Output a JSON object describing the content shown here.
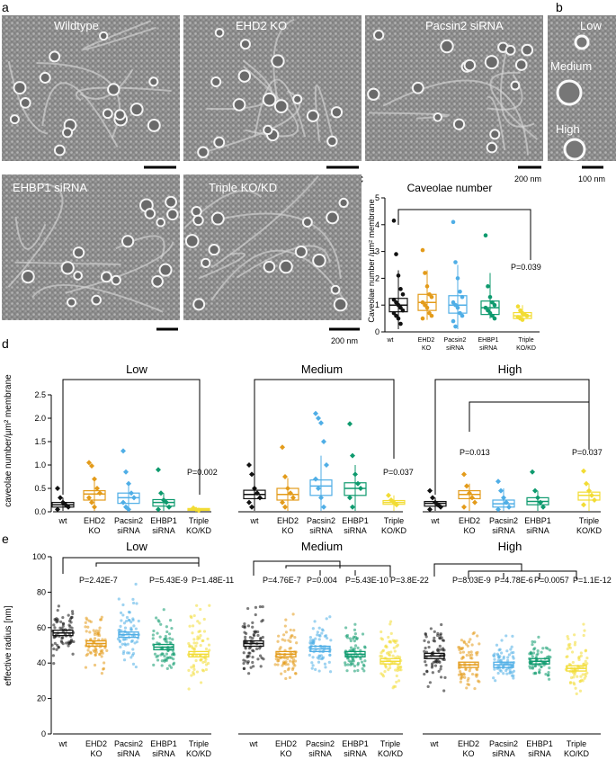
{
  "panel_letters": {
    "a": "a",
    "b": "b",
    "c": "c",
    "d": "d",
    "e": "e"
  },
  "micrographs": {
    "wildtype": "Wildtype",
    "ehd2_ko": "EHD2 KO",
    "pacsin2_sirna": "Pacsin2 siRNA",
    "ehbp1_sirna": "EHBP1 siRNA",
    "triple": "Triple KO/KD",
    "scale_200nm": "200 nm",
    "scale_200nm_b": "200 nm",
    "scale_100nm": "100 nm"
  },
  "panel_b": {
    "low": "Low",
    "medium": "Medium",
    "high": "High"
  },
  "colors": {
    "wt": "#111111",
    "ehd2": "#E39B1A",
    "pacsin2": "#4FAEE6",
    "ehbp1": "#0E9A6E",
    "triple": "#F2DC34"
  },
  "group_labels": [
    [
      "wt"
    ],
    [
      "EHD2",
      "KO"
    ],
    [
      "Pacsin2",
      "siRNA"
    ],
    [
      "EHBP1",
      "siRNA"
    ],
    [
      "Triple",
      "KO/KD"
    ]
  ],
  "panel_c": {
    "title": "Caveolae number",
    "ylabel": "Caveolae number /µm² membrane",
    "ticks": [
      "0",
      "1",
      "2",
      "3",
      "4",
      "5"
    ],
    "pvalue": "P=0.039"
  },
  "panel_d": {
    "ylabel": "caveolae number/µm² membrane",
    "ticks": [
      "0.0",
      "0.5",
      "1.0",
      "1.5",
      "2.0",
      "2.5"
    ],
    "low_title": "Low",
    "medium_title": "Medium",
    "high_title": "High",
    "low_p": "P=0.002",
    "medium_p": "P=0.037",
    "high_p_ehd2": "P=0.013",
    "high_p_triple": "P=0.037"
  },
  "panel_e": {
    "ylabel": "effective radius [nm]",
    "ticks": [
      "0",
      "20",
      "40",
      "60",
      "80",
      "100"
    ],
    "low_title": "Low",
    "medium_title": "Medium",
    "high_title": "High",
    "low_p": [
      "P=2.42E-7",
      "P=5.43E-9",
      "P=1.48E-11"
    ],
    "medium_p": [
      "P=4.76E-7",
      "P=0.004",
      "P=5.43E-10",
      "P=3.8E-22"
    ],
    "high_p": [
      "P=8.03E-9",
      "P=4.78E-6",
      "P=0.0057",
      "P=1.1E-12"
    ]
  },
  "chart_data": [
    {
      "panel": "c",
      "type": "scatter",
      "title": "Caveolae number",
      "ylabel": "Caveolae number /µm² membrane",
      "ylim": [
        0,
        5
      ],
      "categories": [
        "wt",
        "EHD2 KO",
        "Pacsin2 siRNA",
        "EHBP1 siRNA",
        "Triple KO/KD"
      ],
      "medians": [
        1.0,
        1.1,
        1.0,
        0.9,
        0.6
      ],
      "box_low": [
        0.75,
        0.8,
        0.7,
        0.65,
        0.5
      ],
      "box_high": [
        1.25,
        1.4,
        1.35,
        1.15,
        0.72
      ],
      "whisker_low": [
        0.1,
        0.45,
        0.1,
        0.5,
        0.4
      ],
      "whisker_high": [
        2.3,
        2.3,
        2.5,
        2.2,
        1.0
      ],
      "points": [
        [
          4.15,
          2.9,
          2.1,
          1.6,
          1.4,
          1.2,
          1.1,
          1.0,
          0.9,
          0.8,
          0.7,
          0.6,
          0.5,
          0.3
        ],
        [
          3.05,
          2.2,
          1.7,
          1.4,
          1.3,
          1.1,
          1.0,
          0.9,
          0.7,
          0.6,
          0.5
        ],
        [
          4.1,
          2.6,
          2.0,
          1.5,
          1.3,
          1.1,
          1.0,
          0.9,
          0.7,
          0.6,
          0.4,
          0.2
        ],
        [
          3.6,
          1.7,
          1.3,
          1.1,
          1.0,
          0.9,
          0.8,
          0.7,
          0.6,
          0.5
        ],
        [
          0.95,
          0.8,
          0.7,
          0.65,
          0.6,
          0.55,
          0.5,
          0.45
        ]
      ]
    },
    {
      "panel": "d",
      "type": "scatter",
      "ylabel": "caveolae number/µm² membrane",
      "ylim": [
        0,
        2.5
      ],
      "categories": [
        "wt",
        "EHD2 KO",
        "Pacsin2 siRNA",
        "EHBP1 siRNA",
        "Triple KO/KD"
      ],
      "groups": [
        {
          "name": "Low",
          "medians": [
            0.15,
            0.38,
            0.3,
            0.2,
            0.05
          ],
          "box_low": [
            0.1,
            0.25,
            0.18,
            0.12,
            0.03
          ],
          "box_high": [
            0.2,
            0.45,
            0.4,
            0.26,
            0.07
          ],
          "whisker_high": [
            0.3,
            0.72,
            0.65,
            0.4,
            0.09
          ],
          "points": [
            [
              0.5,
              0.3,
              0.2,
              0.15,
              0.1,
              0.05
            ],
            [
              1.05,
              0.98,
              0.7,
              0.5,
              0.4,
              0.3,
              0.2,
              0.1
            ],
            [
              1.3,
              0.85,
              0.6,
              0.4,
              0.3,
              0.2,
              0.1,
              0.05
            ],
            [
              0.9,
              0.4,
              0.25,
              0.2,
              0.1,
              0.05
            ],
            [
              0.08,
              0.05,
              0.03
            ]
          ]
        },
        {
          "name": "Medium",
          "medians": [
            0.37,
            0.37,
            0.55,
            0.5,
            0.2
          ],
          "box_low": [
            0.28,
            0.25,
            0.35,
            0.35,
            0.16
          ],
          "box_high": [
            0.46,
            0.5,
            0.68,
            0.62,
            0.24
          ],
          "whisker_high": [
            0.75,
            0.72,
            1.2,
            1.0,
            0.35
          ],
          "points": [
            [
              1.0,
              0.8,
              0.5,
              0.4,
              0.3,
              0.2,
              0.1
            ],
            [
              1.38,
              0.75,
              0.5,
              0.4,
              0.3,
              0.2,
              0.1
            ],
            [
              2.1,
              2.0,
              1.9,
              1.5,
              1.0,
              0.7,
              0.5,
              0.3,
              0.1
            ],
            [
              1.88,
              1.2,
              0.8,
              0.6,
              0.5,
              0.3,
              0.1
            ],
            [
              0.35,
              0.25,
              0.2,
              0.15
            ]
          ]
        },
        {
          "name": "High",
          "medians": [
            0.18,
            0.37,
            0.17,
            0.22,
            0.35
          ],
          "box_low": [
            0.12,
            0.28,
            0.1,
            0.15,
            0.25
          ],
          "box_high": [
            0.22,
            0.45,
            0.25,
            0.3,
            0.42
          ],
          "whisker_high": [
            0.3,
            0.6,
            0.5,
            0.45,
            0.6
          ],
          "points": [
            [
              0.45,
              0.3,
              0.2,
              0.15,
              0.1,
              0.05
            ],
            [
              0.8,
              0.55,
              0.4,
              0.3,
              0.2,
              0.1
            ],
            [
              0.65,
              0.45,
              0.3,
              0.2,
              0.1,
              0.05
            ],
            [
              0.85,
              0.45,
              0.3,
              0.2,
              0.1
            ],
            [
              0.87,
              0.6,
              0.45,
              0.35,
              0.25,
              0.15
            ]
          ]
        }
      ]
    },
    {
      "panel": "e",
      "type": "scatter",
      "ylabel": "effective radius [nm]",
      "ylim": [
        0,
        100
      ],
      "categories": [
        "wt",
        "EHD2 KO",
        "Pacsin2 siRNA",
        "EHBP1 siRNA",
        "Triple KO/KD"
      ],
      "groups": [
        {
          "name": "Low",
          "means": [
            57,
            51,
            56,
            49,
            45
          ],
          "ranges": [
            [
              38,
              84
            ],
            [
              30,
              76
            ],
            [
              35,
              86
            ],
            [
              30,
              74
            ],
            [
              20,
              80
            ]
          ]
        },
        {
          "name": "Medium",
          "means": [
            51,
            45,
            48,
            45,
            41
          ],
          "ranges": [
            [
              28,
              81
            ],
            [
              25,
              72
            ],
            [
              30,
              70
            ],
            [
              30,
              68
            ],
            [
              20,
              70
            ]
          ]
        },
        {
          "name": "High",
          "means": [
            44,
            39,
            39,
            41,
            37
          ],
          "ranges": [
            [
              20,
              69
            ],
            [
              20,
              66
            ],
            [
              28,
              60
            ],
            [
              28,
              60
            ],
            [
              18,
              65
            ]
          ]
        }
      ]
    }
  ]
}
